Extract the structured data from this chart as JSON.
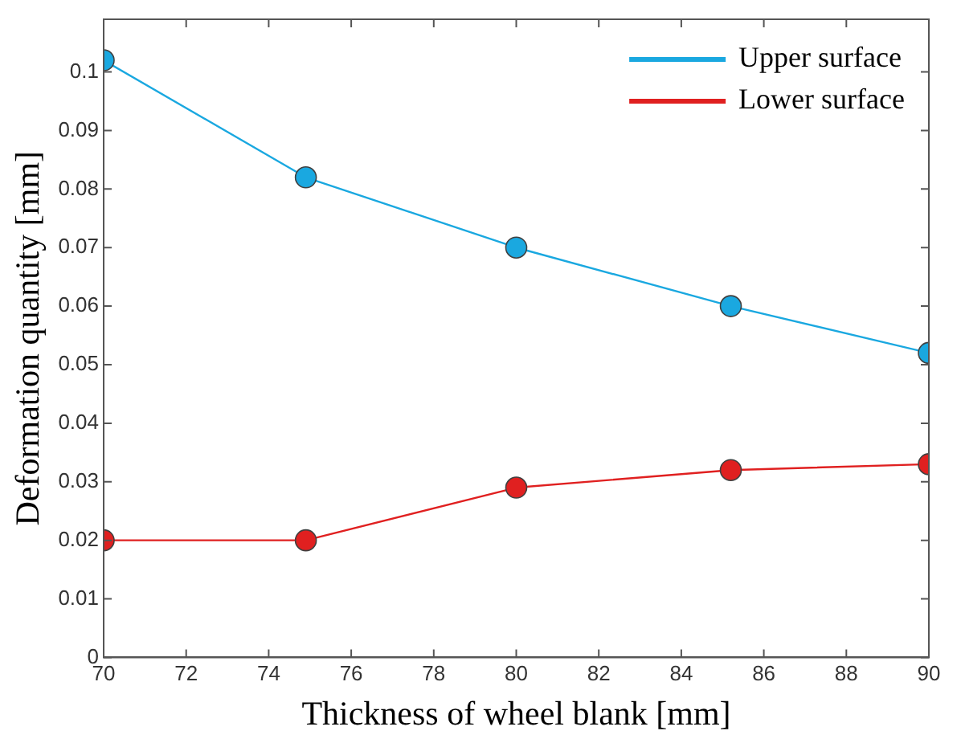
{
  "chart_data": {
    "type": "line",
    "xlabel": "Thickness of wheel blank [mm]",
    "ylabel": "Deformation quantity [mm]",
    "x": [
      70,
      74.9,
      80,
      85.2,
      90
    ],
    "series": [
      {
        "name": "Upper surface",
        "color": "#1aa8e0",
        "values": [
          0.102,
          0.082,
          0.07,
          0.06,
          0.052
        ]
      },
      {
        "name": "Lower surface",
        "color": "#e02020",
        "values": [
          0.02,
          0.02,
          0.029,
          0.032,
          0.033
        ]
      }
    ],
    "xlim": [
      70,
      90
    ],
    "xticks": [
      70,
      72,
      74,
      76,
      78,
      80,
      82,
      84,
      86,
      88,
      90
    ],
    "ylim": [
      0,
      0.109
    ],
    "yticks": [
      0,
      0.01,
      0.02,
      0.03,
      0.04,
      0.05,
      0.06,
      0.07,
      0.08,
      0.09,
      0.1
    ],
    "legend": "top right",
    "marker": "circle",
    "line_style": "solid",
    "grid": false
  }
}
